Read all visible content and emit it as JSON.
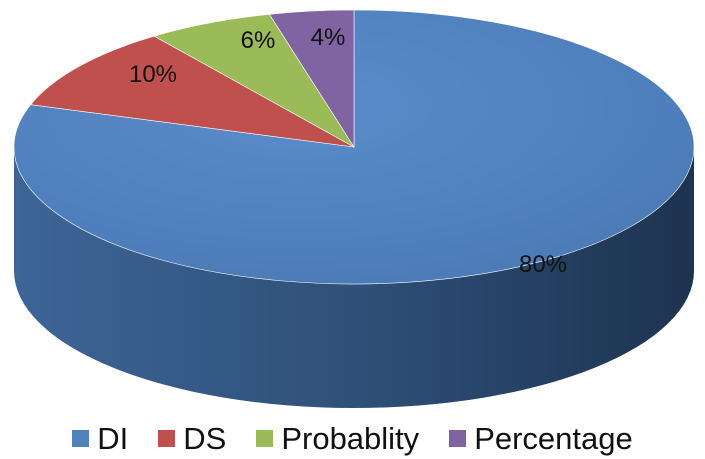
{
  "chart_data": {
    "type": "pie",
    "style": "3d",
    "categories": [
      "DI",
      "DS",
      "Probablity",
      "Percentage"
    ],
    "values": [
      80,
      10,
      6,
      4
    ],
    "labels": [
      "80%",
      "10%",
      "6%",
      "4%"
    ],
    "colors": [
      "#4f81bd",
      "#c0504d",
      "#9bbb59",
      "#8064a2"
    ],
    "legend_position": "bottom",
    "title": ""
  }
}
